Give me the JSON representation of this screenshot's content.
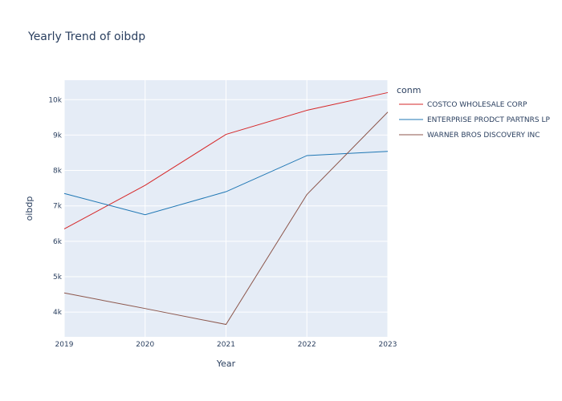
{
  "chart_data": {
    "type": "line",
    "title": "Yearly Trend of oibdp",
    "xlabel": "Year",
    "ylabel": "oibdp",
    "x": [
      2019,
      2020,
      2021,
      2022,
      2023
    ],
    "xlim": [
      2019,
      2023
    ],
    "ylim": [
      3300,
      10550
    ],
    "y_ticks": [
      4000,
      5000,
      6000,
      7000,
      8000,
      9000,
      10000
    ],
    "y_tick_labels": [
      "4k",
      "5k",
      "6k",
      "7k",
      "8k",
      "9k",
      "10k"
    ],
    "grid": true,
    "legend": {
      "title": "conm",
      "placement": "right"
    },
    "series": [
      {
        "name": "COSTCO WHOLESALE CORP",
        "color": "#d62728",
        "values": [
          6350,
          7580,
          9020,
          9700,
          10200
        ]
      },
      {
        "name": "ENTERPRISE PRODCT PARTNRS LP",
        "color": "#1f77b4",
        "values": [
          7350,
          6750,
          7400,
          8420,
          8540
        ]
      },
      {
        "name": "WARNER BROS DISCOVERY INC",
        "color": "#8c564b",
        "values": [
          4540,
          4100,
          3650,
          7320,
          9650
        ]
      }
    ],
    "colors": {
      "plot_bg": "#e5ecf6",
      "grid": "#ffffff"
    }
  }
}
